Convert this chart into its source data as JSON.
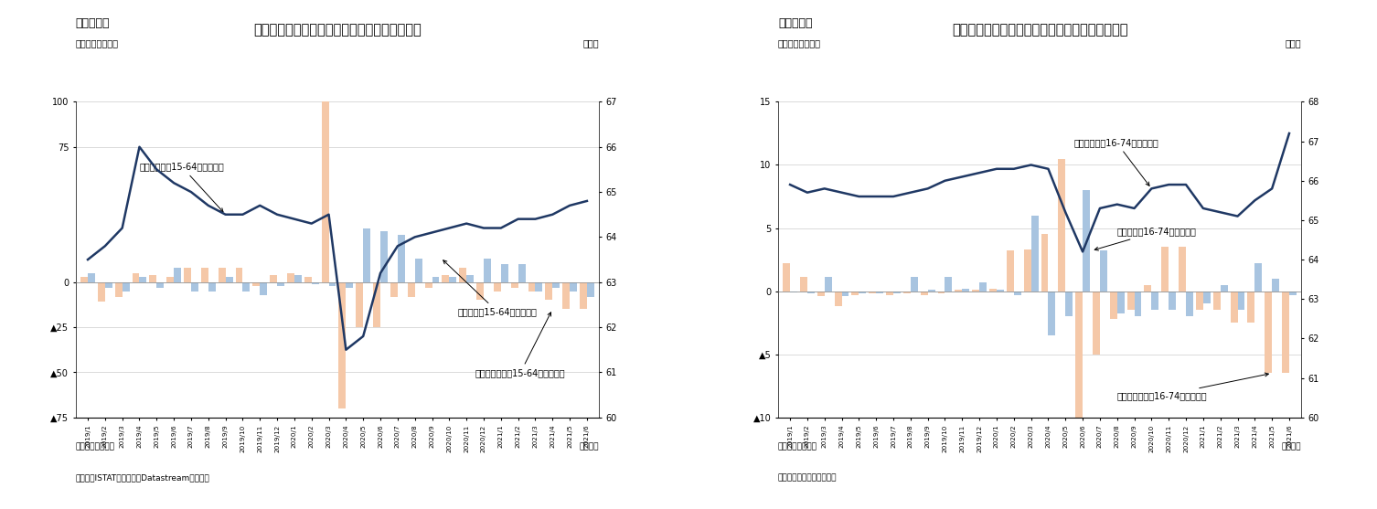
{
  "chart7": {
    "title": "イタリアの失業者・非労働力人口・労働参加率",
    "subtitle": "（図表７）",
    "ylabel_left": "（前月差、万人）",
    "ylabel_right": "（％）",
    "note1": "（注）季節調整値",
    "note2": "（資料）ISTATのデータをDatastreamより取得",
    "note3": "（月次）",
    "ylim_left": [
      -75,
      100
    ],
    "ylim_right": [
      60,
      67
    ],
    "yticks_left": [
      100,
      75,
      0,
      -25,
      -50,
      -75
    ],
    "yticks_right": [
      60,
      61,
      62,
      63,
      64,
      65,
      66,
      67
    ],
    "categories": [
      "2019/1",
      "2019/2",
      "2019/3",
      "2019/4",
      "2019/5",
      "2019/6",
      "2019/7",
      "2019/8",
      "2019/9",
      "2019/10",
      "2019/11",
      "2019/12",
      "2020/1",
      "2020/2",
      "2020/3",
      "2020/4",
      "2020/5",
      "2020/6",
      "2020/7",
      "2020/8",
      "2020/9",
      "2020/10",
      "2020/11",
      "2020/12",
      "2021/1",
      "2021/2",
      "2021/3",
      "2021/4",
      "2021/5",
      "2021/6"
    ],
    "unemployed": [
      5,
      -3,
      -5,
      3,
      -3,
      8,
      -5,
      -5,
      3,
      -5,
      -7,
      -2,
      4,
      -1,
      -2,
      -3,
      30,
      28,
      26,
      13,
      3,
      3,
      4,
      13,
      10,
      10,
      -5,
      -3,
      -5,
      -8
    ],
    "nonlabor": [
      3,
      -11,
      -8,
      5,
      4,
      3,
      8,
      8,
      8,
      8,
      -2,
      4,
      5,
      3,
      100,
      -70,
      -25,
      -25,
      -8,
      -8,
      -3,
      4,
      8,
      -10,
      -5,
      -3,
      -5,
      -10,
      -15,
      -15
    ],
    "participation": [
      63.5,
      63.8,
      64.2,
      66.0,
      65.5,
      65.2,
      65.0,
      64.7,
      64.5,
      64.5,
      64.7,
      64.5,
      64.4,
      64.3,
      64.5,
      61.5,
      61.8,
      63.2,
      63.8,
      64.0,
      64.1,
      64.2,
      64.3,
      64.2,
      64.2,
      64.4,
      64.4,
      64.5,
      64.7,
      64.8
    ],
    "ann_part_text": "労働参加率（15-64才、右軸）",
    "ann_unemp_text": "失業者数（15-64才）の変化",
    "ann_nonlab_text": "非労働者人口（15-64才）の変化",
    "color_unemployed": "#a8c4e0",
    "color_nonlabor": "#f5c8a8",
    "color_line": "#1f3864"
  },
  "chart8": {
    "title": "ポルトガルの失業者・非労働力人口・労働参加率",
    "subtitle": "（図表８）",
    "ylabel_left": "（前月差、万人）",
    "ylabel_right": "（％）",
    "note1": "（注）季節調整値",
    "note2": "（資料）ポルトガル統計局",
    "note3": "（月次）",
    "ylim_left": [
      -10,
      15
    ],
    "ylim_right": [
      60,
      68
    ],
    "yticks_left": [
      15,
      10,
      5,
      0,
      -5,
      -10
    ],
    "yticks_right": [
      60,
      61,
      62,
      63,
      64,
      65,
      66,
      67,
      68
    ],
    "categories": [
      "2019/1",
      "2019/2",
      "2019/3",
      "2019/4",
      "2019/5",
      "2019/6",
      "2019/7",
      "2019/8",
      "2019/9",
      "2019/10",
      "2019/11",
      "2019/12",
      "2020/1",
      "2020/2",
      "2020/3",
      "2020/4",
      "2020/5",
      "2020/6",
      "2020/7",
      "2020/8",
      "2020/9",
      "2020/10",
      "2020/11",
      "2020/12",
      "2021/1",
      "2021/2",
      "2021/3",
      "2021/4",
      "2021/5",
      "2021/6"
    ],
    "unemployed": [
      -0.1,
      -0.2,
      1.1,
      -0.4,
      -0.2,
      -0.2,
      -0.2,
      1.1,
      0.1,
      1.1,
      0.2,
      0.7,
      0.1,
      -0.3,
      6.0,
      -3.5,
      -2.0,
      8.0,
      3.2,
      -1.8,
      -2.0,
      -1.5,
      -1.5,
      -2.0,
      -1.0,
      0.5,
      -1.5,
      2.2,
      1.0,
      -0.3
    ],
    "nonlabor": [
      2.2,
      1.1,
      -0.4,
      -1.2,
      -0.3,
      -0.2,
      -0.3,
      -0.2,
      -0.3,
      -0.2,
      0.1,
      0.1,
      0.2,
      3.2,
      3.3,
      4.5,
      10.5,
      -10.5,
      -5.0,
      -2.2,
      -1.5,
      0.5,
      3.5,
      3.5,
      -1.5,
      -1.5,
      -2.5,
      -2.5,
      -6.5,
      -6.5
    ],
    "participation": [
      65.9,
      65.7,
      65.8,
      65.7,
      65.6,
      65.6,
      65.6,
      65.7,
      65.8,
      66.0,
      66.1,
      66.2,
      66.3,
      66.3,
      66.4,
      66.3,
      65.2,
      64.2,
      65.3,
      65.4,
      65.3,
      65.8,
      65.9,
      65.9,
      65.3,
      65.2,
      65.1,
      65.5,
      65.8,
      67.2
    ],
    "ann_part_text": "労働参加率（16-74才、右軸）",
    "ann_unemp_text": "失業者数（16-74才）の変化",
    "ann_nonlab_text": "非労働者人口（16-74才）の変化",
    "color_unemployed": "#a8c4e0",
    "color_nonlabor": "#f5c8a8",
    "color_line": "#1f3864"
  }
}
